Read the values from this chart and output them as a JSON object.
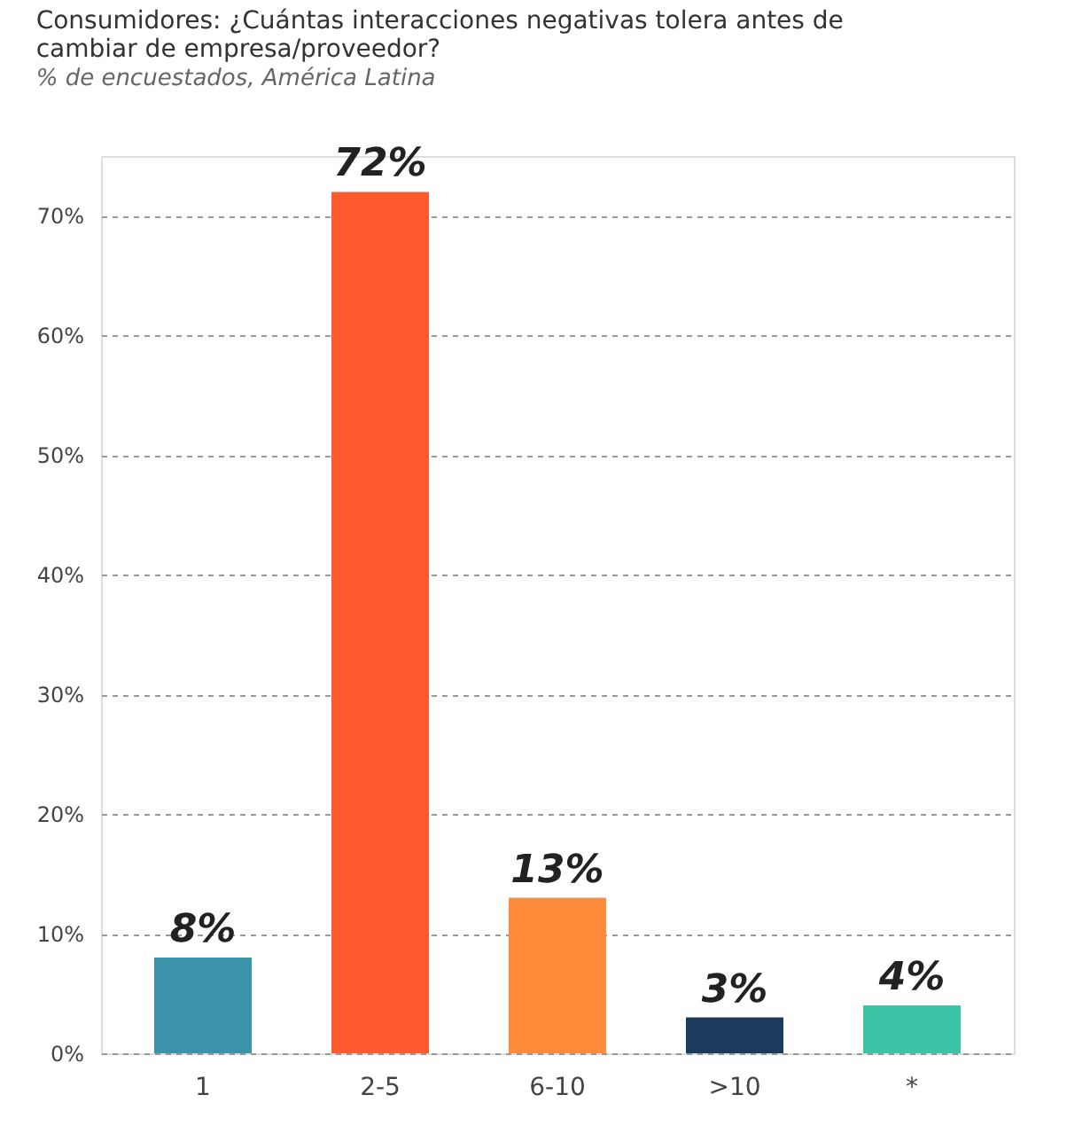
{
  "chart_data": {
    "type": "bar",
    "title": "Consumidores: ¿Cuántas interacciones negativas tolera antes de cambiar de empresa/proveedor?",
    "subtitle": "% de encuestados, América Latina",
    "categories": [
      "1",
      "2-5",
      "6-10",
      ">10",
      "*"
    ],
    "values": [
      8,
      72,
      13,
      3,
      4
    ],
    "colors": [
      "#3a93a8",
      "#ff5a2e",
      "#ff8c3a",
      "#1c3a5e",
      "#3cc4a6"
    ],
    "value_labels": [
      "8%",
      "72%",
      "13%",
      "3%",
      "4%"
    ],
    "ylim": [
      0,
      75
    ],
    "yticks": [
      {
        "value": 0,
        "label": "0%"
      },
      {
        "value": 10,
        "label": "10%"
      },
      {
        "value": 20,
        "label": "20%"
      },
      {
        "value": 30,
        "label": "30%"
      },
      {
        "value": 40,
        "label": "40%"
      },
      {
        "value": 50,
        "label": "50%"
      },
      {
        "value": 60,
        "label": "60%"
      },
      {
        "value": 70,
        "label": "70%"
      }
    ],
    "grid": "y",
    "legend": false
  }
}
